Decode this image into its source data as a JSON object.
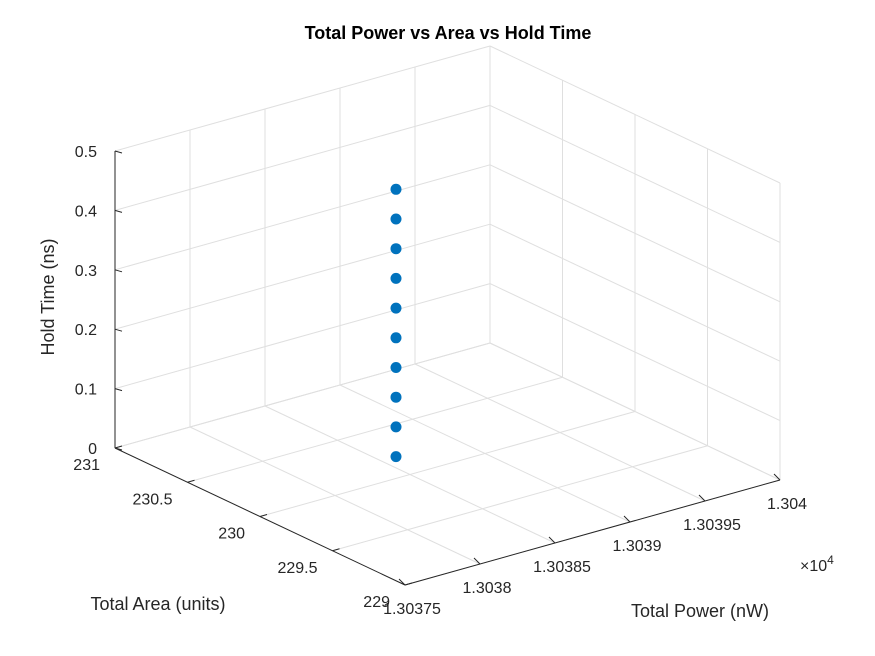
{
  "chart_data": {
    "type": "scatter3d",
    "title": "Total Power vs Area vs Hold Time",
    "xlabel": "Total Power (nW)",
    "ylabel": "Total Area (units)",
    "zlabel": "Hold Time (ns)",
    "x_exponent": "×10",
    "x_exponent_power": "4",
    "x_ticks": [
      "1.30375",
      "1.3038",
      "1.30385",
      "1.3039",
      "1.30395",
      "1.304"
    ],
    "y_ticks": [
      "229",
      "229.5",
      "230",
      "230.5",
      "231"
    ],
    "z_ticks": [
      "0",
      "0.1",
      "0.2",
      "0.3",
      "0.4",
      "0.5"
    ],
    "xlim": [
      1.30375,
      1.304
    ],
    "ylim": [
      229,
      231
    ],
    "zlim": [
      0,
      0.5
    ],
    "grid": true,
    "marker_color": "#0072BD",
    "points": [
      {
        "x": 1.30386,
        "y": 230.2,
        "z": 0.0
      },
      {
        "x": 1.30386,
        "y": 230.2,
        "z": 0.05
      },
      {
        "x": 1.30386,
        "y": 230.2,
        "z": 0.1
      },
      {
        "x": 1.30386,
        "y": 230.2,
        "z": 0.15
      },
      {
        "x": 1.30386,
        "y": 230.2,
        "z": 0.2
      },
      {
        "x": 1.30386,
        "y": 230.2,
        "z": 0.25
      },
      {
        "x": 1.30386,
        "y": 230.2,
        "z": 0.3
      },
      {
        "x": 1.30386,
        "y": 230.2,
        "z": 0.35
      },
      {
        "x": 1.30386,
        "y": 230.2,
        "z": 0.4
      },
      {
        "x": 1.30386,
        "y": 230.2,
        "z": 0.45
      }
    ]
  }
}
